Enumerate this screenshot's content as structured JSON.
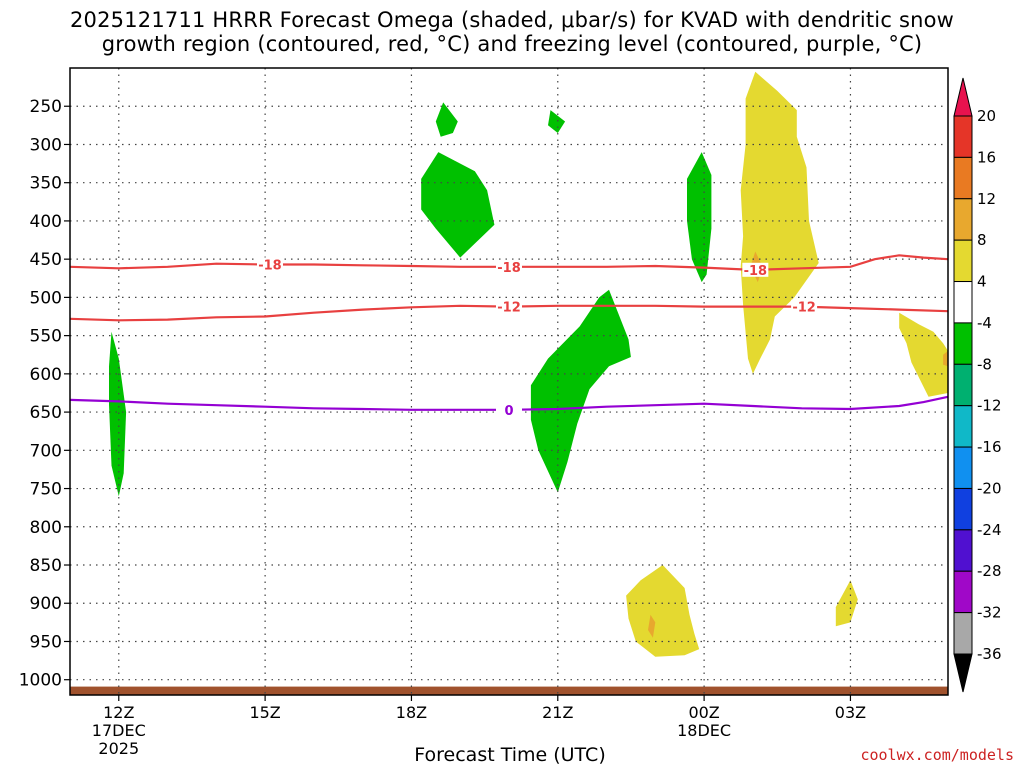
{
  "chart_data": {
    "type": "heatmap",
    "title_line1": "2025121711 HRRR Forecast Omega (shaded, μbar/s) for KVAD with dendritic snow",
    "title_line2": "growth region (contoured, red, °C) and freezing level (contoured, purple, °C)",
    "xlabel": "Forecast Time (UTC)",
    "credit": "coolwx.com/models",
    "x_unit": "hours since 2025-12-17 12Z",
    "xlim": [
      -1,
      17
    ],
    "x_ticks": [
      {
        "x": 0,
        "lines": [
          "12Z",
          "17DEC",
          "2025"
        ]
      },
      {
        "x": 3,
        "lines": [
          "15Z"
        ]
      },
      {
        "x": 6,
        "lines": [
          "18Z"
        ]
      },
      {
        "x": 9,
        "lines": [
          "21Z"
        ]
      },
      {
        "x": 12,
        "lines": [
          "00Z",
          "18DEC"
        ]
      },
      {
        "x": 15,
        "lines": [
          "03Z"
        ]
      }
    ],
    "y_unit": "hPa",
    "ylim": [
      1020,
      200
    ],
    "y_ticks": [
      250,
      300,
      350,
      400,
      450,
      500,
      550,
      600,
      650,
      700,
      750,
      800,
      850,
      900,
      950,
      1000
    ],
    "colorbar": {
      "labels": [
        "20",
        "16",
        "12",
        "8",
        "4",
        "-4",
        "-8",
        "-12",
        "-16",
        "-20",
        "-24",
        "-28",
        "-32",
        "-36"
      ],
      "colors": [
        "#e8124e",
        "#e53528",
        "#e97a22",
        "#e8a82e",
        "#e4d930",
        "#ffffff",
        "#00c000",
        "#00b070",
        "#10b8c8",
        "#1090f0",
        "#1040e0",
        "#5010d0",
        "#a008c8",
        "#a8a8a8",
        "#000000"
      ]
    },
    "ground_color": "#a0522d",
    "omega_regions": [
      {
        "color": "#00c000",
        "points": [
          [
            -0.15,
            545
          ],
          [
            0,
            580
          ],
          [
            0.15,
            650
          ],
          [
            0.1,
            730
          ],
          [
            0,
            760
          ],
          [
            -0.15,
            720
          ],
          [
            -0.2,
            640
          ],
          [
            -0.2,
            590
          ]
        ]
      },
      {
        "color": "#00c000",
        "points": [
          [
            6.65,
            245
          ],
          [
            6.95,
            270
          ],
          [
            6.85,
            285
          ],
          [
            6.6,
            290
          ],
          [
            6.5,
            270
          ]
        ]
      },
      {
        "color": "#00c000",
        "points": [
          [
            8.85,
            255
          ],
          [
            9.15,
            270
          ],
          [
            9.0,
            285
          ],
          [
            8.8,
            275
          ]
        ]
      },
      {
        "color": "#00c000",
        "points": [
          [
            6.55,
            310
          ],
          [
            7.3,
            335
          ],
          [
            7.55,
            360
          ],
          [
            7.7,
            405
          ],
          [
            7.0,
            448
          ],
          [
            6.5,
            410
          ],
          [
            6.2,
            385
          ],
          [
            6.2,
            345
          ]
        ]
      },
      {
        "color": "#00c000",
        "points": [
          [
            11.95,
            310
          ],
          [
            12.15,
            340
          ],
          [
            12.15,
            410
          ],
          [
            12.05,
            470
          ],
          [
            11.95,
            480
          ],
          [
            11.75,
            450
          ],
          [
            11.65,
            400
          ],
          [
            11.65,
            345
          ]
        ]
      },
      {
        "color": "#00c000",
        "points": [
          [
            10.05,
            490
          ],
          [
            10.45,
            555
          ],
          [
            10.5,
            578
          ],
          [
            10.05,
            590
          ],
          [
            9.65,
            620
          ],
          [
            9.4,
            665
          ],
          [
            9.2,
            715
          ],
          [
            9.0,
            755
          ],
          [
            8.6,
            700
          ],
          [
            8.45,
            660
          ],
          [
            8.45,
            615
          ],
          [
            8.8,
            580
          ],
          [
            9.45,
            538
          ],
          [
            9.85,
            500
          ]
        ]
      },
      {
        "color": "#e4d930",
        "points": [
          [
            13.05,
            205
          ],
          [
            13.5,
            230
          ],
          [
            13.9,
            255
          ],
          [
            13.9,
            290
          ],
          [
            14.1,
            330
          ],
          [
            14.15,
            400
          ],
          [
            14.35,
            455
          ],
          [
            13.85,
            500
          ],
          [
            13.45,
            525
          ],
          [
            13.35,
            555
          ],
          [
            13.15,
            580
          ],
          [
            13.0,
            600
          ],
          [
            12.9,
            580
          ],
          [
            12.8,
            510
          ],
          [
            12.75,
            460
          ],
          [
            12.8,
            420
          ],
          [
            12.75,
            360
          ],
          [
            12.85,
            300
          ],
          [
            12.85,
            240
          ]
        ]
      },
      {
        "color": "#e8a82e",
        "points": [
          [
            13.05,
            440
          ],
          [
            13.2,
            460
          ],
          [
            13.1,
            480
          ],
          [
            12.95,
            460
          ]
        ]
      },
      {
        "color": "#e4d930",
        "points": [
          [
            16.0,
            520
          ],
          [
            16.4,
            535
          ],
          [
            16.7,
            545
          ],
          [
            16.9,
            560
          ],
          [
            17.0,
            570
          ],
          [
            17.0,
            625
          ],
          [
            16.6,
            630
          ],
          [
            16.25,
            585
          ],
          [
            16.15,
            560
          ],
          [
            16.0,
            540
          ]
        ]
      },
      {
        "color": "#e8a82e",
        "points": [
          [
            16.9,
            575
          ],
          [
            17.0,
            570
          ],
          [
            17.0,
            590
          ],
          [
            16.9,
            588
          ]
        ]
      },
      {
        "color": "#e4d930",
        "points": [
          [
            10.7,
            870
          ],
          [
            11.15,
            850
          ],
          [
            11.6,
            880
          ],
          [
            11.7,
            915
          ],
          [
            11.8,
            940
          ],
          [
            11.9,
            960
          ],
          [
            11.6,
            968
          ],
          [
            11.0,
            970
          ],
          [
            10.6,
            950
          ],
          [
            10.45,
            920
          ],
          [
            10.4,
            890
          ]
        ]
      },
      {
        "color": "#e8a82e",
        "points": [
          [
            10.9,
            915
          ],
          [
            11.0,
            925
          ],
          [
            10.95,
            945
          ],
          [
            10.85,
            935
          ]
        ]
      },
      {
        "color": "#e4d930",
        "points": [
          [
            15.0,
            870
          ],
          [
            15.15,
            895
          ],
          [
            15.0,
            925
          ],
          [
            14.7,
            930
          ],
          [
            14.7,
            905
          ]
        ]
      }
    ],
    "contours": [
      {
        "label": "-18",
        "color": "#e84040",
        "label_x": [
          3.1,
          8.0,
          13.05
        ],
        "points": [
          [
            -1,
            460
          ],
          [
            0,
            462
          ],
          [
            1,
            460
          ],
          [
            2,
            456
          ],
          [
            3,
            457
          ],
          [
            4,
            457
          ],
          [
            5,
            458
          ],
          [
            6,
            459
          ],
          [
            7,
            460
          ],
          [
            8,
            460
          ],
          [
            9,
            460
          ],
          [
            10,
            460
          ],
          [
            11,
            459
          ],
          [
            12,
            461
          ],
          [
            13,
            464
          ],
          [
            14,
            462
          ],
          [
            15,
            460
          ],
          [
            15.5,
            450
          ],
          [
            16,
            445
          ],
          [
            16.5,
            448
          ],
          [
            17,
            450
          ]
        ]
      },
      {
        "label": "-12",
        "color": "#e84040",
        "label_x": [
          8.0,
          14.05
        ],
        "points": [
          [
            -1,
            528
          ],
          [
            0,
            530
          ],
          [
            1,
            529
          ],
          [
            2,
            526
          ],
          [
            3,
            525
          ],
          [
            4,
            520
          ],
          [
            5,
            516
          ],
          [
            6,
            513
          ],
          [
            7,
            511
          ],
          [
            8,
            512
          ],
          [
            9,
            511
          ],
          [
            10,
            511
          ],
          [
            11,
            511
          ],
          [
            12,
            512
          ],
          [
            13,
            512
          ],
          [
            14,
            512
          ],
          [
            15,
            514
          ],
          [
            16,
            516
          ],
          [
            17,
            518
          ]
        ]
      },
      {
        "label": "0",
        "color": "#9400d3",
        "label_x": [
          8.0
        ],
        "points": [
          [
            -1,
            634
          ],
          [
            0,
            636
          ],
          [
            1,
            639
          ],
          [
            2,
            641
          ],
          [
            3,
            643
          ],
          [
            4,
            645
          ],
          [
            5,
            646
          ],
          [
            6,
            647
          ],
          [
            7,
            647
          ],
          [
            8,
            647
          ],
          [
            9,
            646
          ],
          [
            10,
            643
          ],
          [
            11,
            641
          ],
          [
            12,
            639
          ],
          [
            13,
            642
          ],
          [
            14,
            645
          ],
          [
            15,
            646
          ],
          [
            16,
            642
          ],
          [
            16.5,
            637
          ],
          [
            17,
            630
          ]
        ]
      }
    ]
  }
}
